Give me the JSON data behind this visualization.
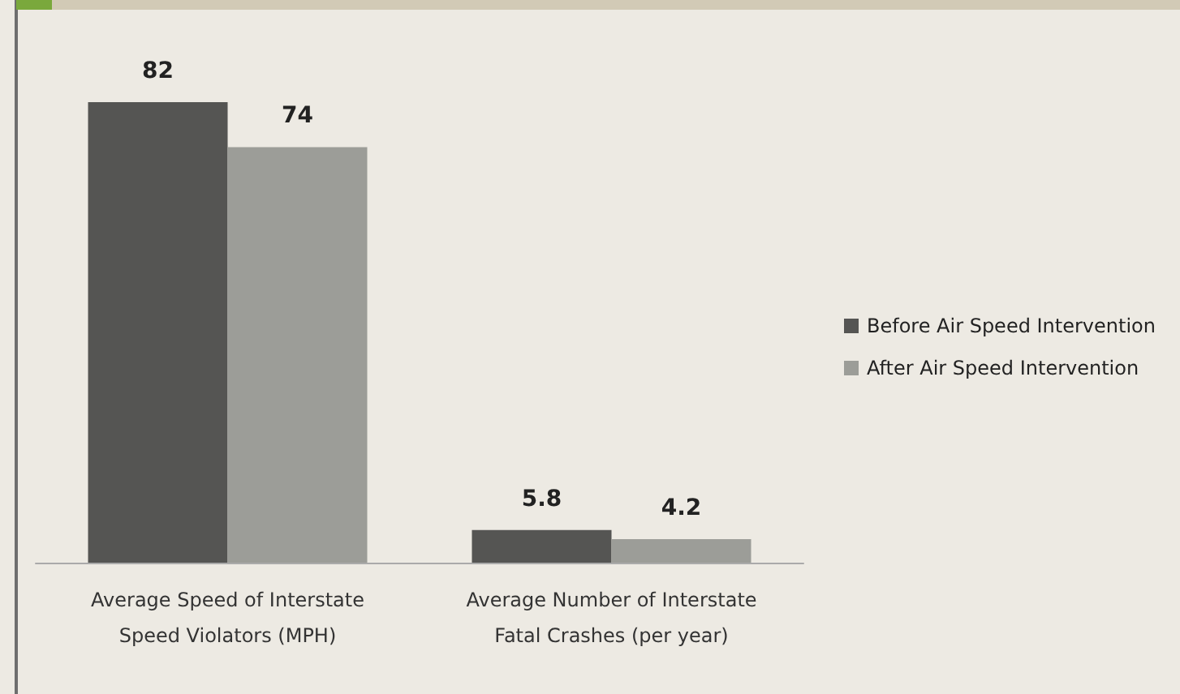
{
  "chart_data": {
    "type": "bar",
    "categories": [
      "Average Speed of Interstate\nSpeed Violators (MPH)",
      "Average Number of Interstate\nFatal Crashes (per year)"
    ],
    "series": [
      {
        "name": "Before Air Speed Intervention",
        "color": "#555553",
        "values": [
          82,
          5.8
        ]
      },
      {
        "name": "After Air Speed Intervention",
        "color": "#9c9d98",
        "values": [
          74,
          4.2
        ]
      }
    ],
    "data_labels": true,
    "legend": "right"
  }
}
